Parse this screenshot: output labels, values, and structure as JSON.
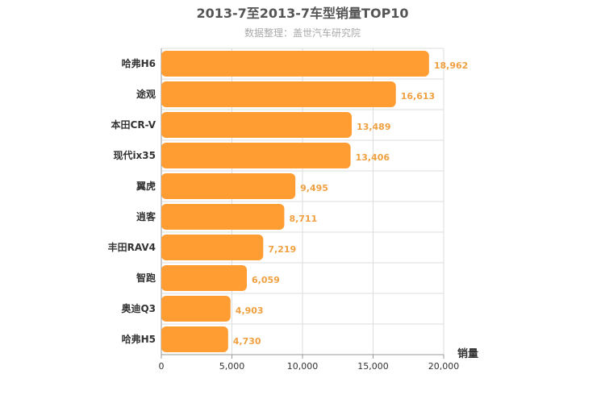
{
  "chart_data": {
    "type": "bar",
    "orientation": "horizontal",
    "title": "2013-7至2013-7车型销量TOP10",
    "subtitle": "数据整理：盖世汽车研究院",
    "xlabel": "销量",
    "ylabel": "",
    "xlim": [
      0,
      20000
    ],
    "x_ticks": [
      0,
      5000,
      10000,
      15000,
      20000
    ],
    "x_tick_labels": [
      "0",
      "5,000",
      "10,000",
      "15,000",
      "20,000"
    ],
    "grid": true,
    "bar_color": "#ff9d33",
    "value_label_color": "#f0a040",
    "categories": [
      "哈弗H6",
      "途观",
      "本田CR-V",
      "现代ix35",
      "翼虎",
      "逍客",
      "丰田RAV4",
      "智跑",
      "奥迪Q3",
      "哈弗H5"
    ],
    "values": [
      18962,
      16613,
      13489,
      13406,
      9495,
      8711,
      7219,
      6059,
      4903,
      4730
    ],
    "value_labels": [
      "18,962",
      "16,613",
      "13,489",
      "13,406",
      "9,495",
      "8,711",
      "7,219",
      "6,059",
      "4,903",
      "4,730"
    ]
  }
}
